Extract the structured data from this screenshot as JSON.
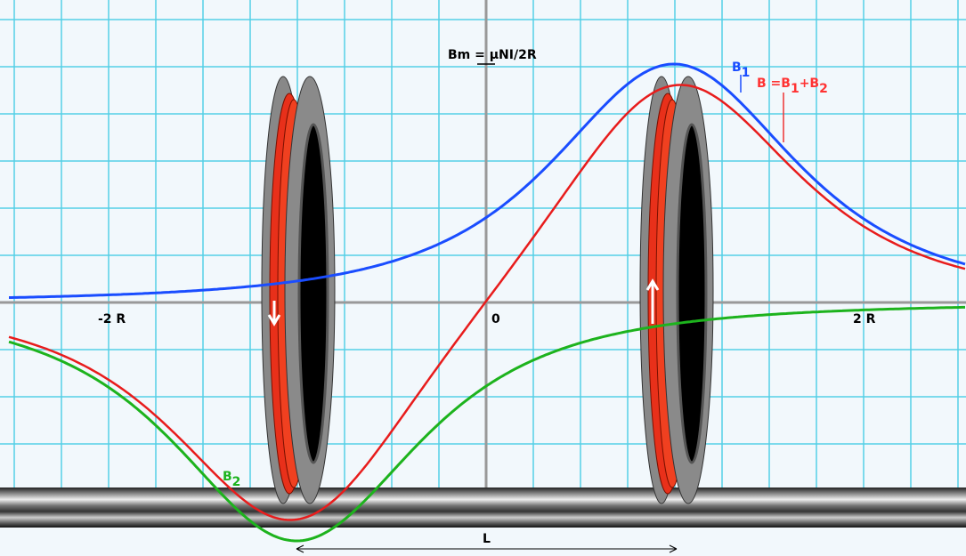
{
  "formula": "Bm = μNI/2R",
  "axis_labels": {
    "neg": "-2 R",
    "zero": "0",
    "pos": "2 R"
  },
  "curve_labels": {
    "b1": [
      "B",
      "1"
    ],
    "sum": [
      "B =B",
      "1",
      "+B",
      "2"
    ],
    "b2": [
      "B",
      "2"
    ]
  },
  "distance": "L"
}
